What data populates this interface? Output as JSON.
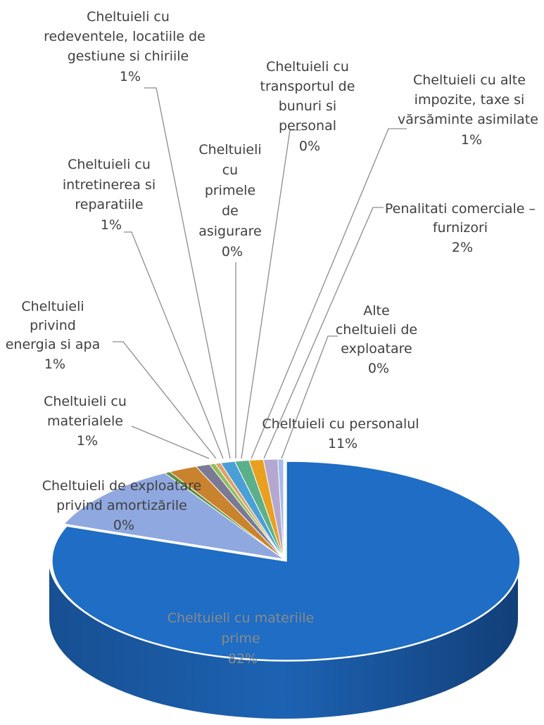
{
  "chart_data": {
    "type": "pie",
    "title": "",
    "slices": [
      {
        "name": "Cheltuieli cu materiile prime",
        "value": 82,
        "label": "82%",
        "color": "#1f6dc4"
      },
      {
        "name": "Cheltuieli cu personalul",
        "value": 11,
        "label": "11%",
        "color": "#8fa8e0"
      },
      {
        "name": "Alte cheltuieli de exploatare",
        "value": 0.4,
        "label": "0%",
        "color": "#5e8f3e"
      },
      {
        "name": "Penalitati comerciale – furnizori",
        "value": 2,
        "label": "2%",
        "color": "#c9822d"
      },
      {
        "name": "Cheltuieli cu alte impozite, taxe si vărsăminte asimilate",
        "value": 1,
        "label": "1%",
        "color": "#7a7a94"
      },
      {
        "name": "Cheltuieli cu transportul de bunuri si personal",
        "value": 0.4,
        "label": "0%",
        "color": "#8fbf5a"
      },
      {
        "name": "Cheltuieli cu primele de asigurare",
        "value": 0.4,
        "label": "0%",
        "color": "#e0a070"
      },
      {
        "name": "Cheltuieli cu redeventele, locatiile de gestiune si chiriile",
        "value": 1,
        "label": "1%",
        "color": "#4aa0d6"
      },
      {
        "name": "Cheltuieli cu intretinerea si reparatiile",
        "value": 1,
        "label": "1%",
        "color": "#5bb08a"
      },
      {
        "name": "Cheltuieli privind energia si apa",
        "value": 1,
        "label": "1%",
        "color": "#e8a020"
      },
      {
        "name": "Cheltuieli cu materialele",
        "value": 1,
        "label": "1%",
        "color": "#b4a8d0"
      },
      {
        "name": "Cheltuieli de exploatare privind amortizările",
        "value": 0.4,
        "label": "0%",
        "color": "#a6bce8"
      }
    ]
  },
  "labels": {
    "redevente": {
      "lines": [
        "Cheltuieli cu",
        "redeventele, locatiile de",
        "gestiune si chiriile"
      ],
      "pct": "1%"
    },
    "transport": {
      "lines": [
        "Cheltuieli cu",
        "transportul de",
        "bunuri si",
        "personal"
      ],
      "pct": "0%"
    },
    "impozite": {
      "lines": [
        "Cheltuieli cu alte",
        "impozite, taxe si",
        "vărsăminte asimilate"
      ],
      "pct": "1%"
    },
    "asigurare": {
      "lines": [
        "Cheltuieli",
        "cu",
        "primele",
        "de",
        "asigurare"
      ],
      "pct": "0%"
    },
    "intretinere": {
      "lines": [
        "Cheltuieli cu",
        "intretinerea si",
        "reparatiile"
      ],
      "pct": "1%"
    },
    "penalitati": {
      "lines": [
        "Penalitati comerciale –",
        "furnizori"
      ],
      "pct": "2%"
    },
    "energie": {
      "lines": [
        "Cheltuieli",
        "privind",
        "energia si apa"
      ],
      "pct": "1%"
    },
    "alte": {
      "lines": [
        "Alte",
        "cheltuieli de",
        "exploatare"
      ],
      "pct": "0%"
    },
    "materiale": {
      "lines": [
        "Cheltuieli cu",
        "materialele"
      ],
      "pct": "1%"
    },
    "personal": {
      "lines": [
        "Cheltuieli cu personalul"
      ],
      "pct": "11%"
    },
    "amortizare": {
      "lines": [
        "Cheltuieli de exploatare",
        "privind amortizările"
      ],
      "pct": "0%"
    },
    "materii": {
      "lines": [
        "Cheltuieli cu materiile",
        "prime"
      ],
      "pct": "82%"
    }
  }
}
